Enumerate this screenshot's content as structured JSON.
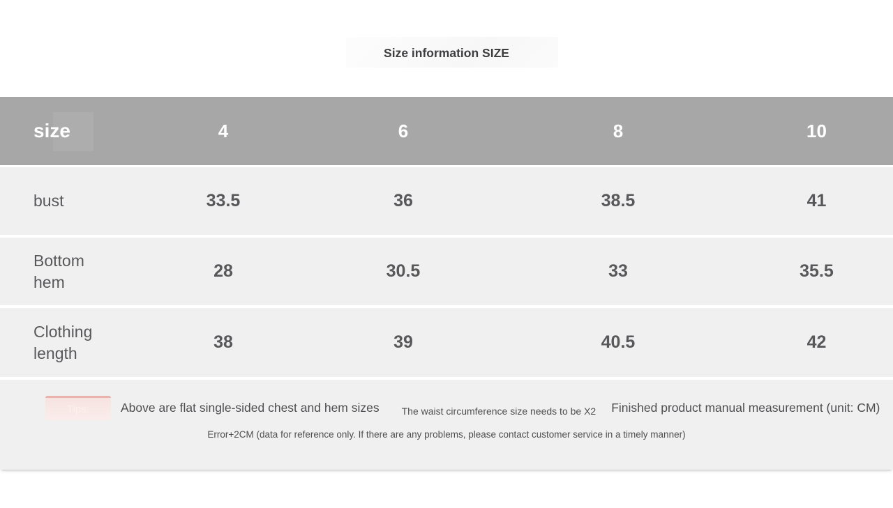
{
  "chart_data": {
    "type": "table",
    "title": "Size information SIZE",
    "header": {
      "label": "size",
      "columns": [
        "4",
        "6",
        "8",
        "10"
      ]
    },
    "rows": [
      {
        "label": "bust",
        "values": [
          "33.5",
          "36",
          "38.5",
          "41"
        ]
      },
      {
        "label": "Bottom hem",
        "values": [
          "28",
          "30.5",
          "33",
          "35.5"
        ]
      },
      {
        "label": "Clothing length",
        "values": [
          "38",
          "39",
          "40.5",
          "42"
        ]
      }
    ]
  },
  "tips": {
    "badge": "Tips:",
    "note_flat": "Above are flat single-sided chest and hem sizes",
    "note_waist": "The waist circumference size needs to be X2",
    "note_finished": "Finished product manual measurement (unit: CM)",
    "note_error": "Error+2CM (data for reference only. If there are any problems, please contact customer service in a timely manner)"
  },
  "colors": {
    "header_bg": "#a8a7a8",
    "row_bg": "#f1f0f1",
    "header_text": "#ffffff",
    "body_text": "#58585a",
    "tips_badge_bg": "#f8e9e7",
    "tips_badge_border": "#e9b2ab",
    "tips_badge_text": "#fbf0ee"
  }
}
